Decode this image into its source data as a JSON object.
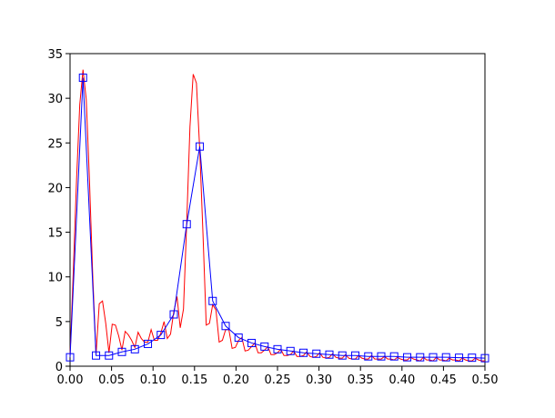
{
  "chart_data": {
    "type": "line",
    "series": [
      {
        "color": "#ff0000",
        "marker": "none",
        "x": [
          0,
          0.0039,
          0.0078,
          0.0117,
          0.0156,
          0.0195,
          0.0234,
          0.0273,
          0.0313,
          0.0352,
          0.0391,
          0.043,
          0.0469,
          0.0508,
          0.0547,
          0.0586,
          0.0625,
          0.0664,
          0.0703,
          0.0742,
          0.0781,
          0.082,
          0.0859,
          0.0898,
          0.0938,
          0.0977,
          0.1016,
          0.1055,
          0.1094,
          0.1133,
          0.1172,
          0.1211,
          0.125,
          0.1289,
          0.1328,
          0.1367,
          0.1406,
          0.1445,
          0.1484,
          0.1523,
          0.1563,
          0.1602,
          0.1641,
          0.168,
          0.1719,
          0.1758,
          0.1797,
          0.1836,
          0.1875,
          0.1914,
          0.1953,
          0.1992,
          0.2031,
          0.207,
          0.2109,
          0.2148,
          0.2188,
          0.2227,
          0.2266,
          0.2305,
          0.2344,
          0.2383,
          0.2422,
          0.2461,
          0.25,
          0.2539,
          0.2578,
          0.2617,
          0.2656,
          0.2695,
          0.2734,
          0.2773,
          0.2813,
          0.2852,
          0.2891,
          0.293,
          0.2969,
          0.3008,
          0.3047,
          0.3086,
          0.3125,
          0.3164,
          0.3203,
          0.3242,
          0.3281,
          0.332,
          0.3359,
          0.3398,
          0.3438,
          0.3477,
          0.3516,
          0.3555,
          0.3594,
          0.3633,
          0.3672,
          0.3711,
          0.375,
          0.3789,
          0.3828,
          0.3867,
          0.3906,
          0.3945,
          0.3984,
          0.4023,
          0.4063,
          0.4102,
          0.4141,
          0.418,
          0.4219,
          0.4258,
          0.4297,
          0.4336,
          0.4375,
          0.4414,
          0.4453,
          0.4492,
          0.4531,
          0.457,
          0.4609,
          0.4648,
          0.4688,
          0.4727,
          0.4766,
          0.4805,
          0.4844,
          0.4883,
          0.4922,
          0.4961,
          0.5
        ],
        "values": [
          1.1,
          10.6,
          20.8,
          29.3,
          33.2,
          29.9,
          20.8,
          10.2,
          1.3,
          7.0,
          7.3,
          4.8,
          1.5,
          4.7,
          4.6,
          3.4,
          1.8,
          3.9,
          3.5,
          2.9,
          2.1,
          3.8,
          3.1,
          2.7,
          2.7,
          4.1,
          2.9,
          2.9,
          3.7,
          5.0,
          3.1,
          3.6,
          6.1,
          7.8,
          4.3,
          6.4,
          16.1,
          26.8,
          32.7,
          31.7,
          24.2,
          14.8,
          4.6,
          4.8,
          6.9,
          6.3,
          2.7,
          2.9,
          4.1,
          4.1,
          2.0,
          2.1,
          2.9,
          3.2,
          1.7,
          1.8,
          2.2,
          2.6,
          1.5,
          1.5,
          1.8,
          2.2,
          1.3,
          1.3,
          1.5,
          1.9,
          1.2,
          1.2,
          1.3,
          1.7,
          1.1,
          1.1,
          1.2,
          1.6,
          1.1,
          1.0,
          1.1,
          1.5,
          1.0,
          0.9,
          1.0,
          1.4,
          1.0,
          0.9,
          0.9,
          1.3,
          0.9,
          0.8,
          0.8,
          1.2,
          0.9,
          0.8,
          0.8,
          1.2,
          0.8,
          0.8,
          0.8,
          1.1,
          0.8,
          0.8,
          0.7,
          1.0,
          0.8,
          0.7,
          0.7,
          1.0,
          0.8,
          0.7,
          0.6,
          1.0,
          0.7,
          0.7,
          0.6,
          1.0,
          0.7,
          0.7,
          0.6,
          0.9,
          0.7,
          0.7,
          0.6,
          0.9,
          0.7,
          0.6,
          0.6,
          0.9,
          0.7,
          0.6,
          0.6
        ]
      },
      {
        "color": "#0000ff",
        "marker": "square",
        "x": [
          0,
          0.0156,
          0.0313,
          0.0469,
          0.0625,
          0.0781,
          0.0938,
          0.1094,
          0.125,
          0.1406,
          0.1563,
          0.1719,
          0.1875,
          0.2031,
          0.2188,
          0.2344,
          0.25,
          0.2656,
          0.2813,
          0.2969,
          0.3125,
          0.3281,
          0.3438,
          0.3594,
          0.375,
          0.3906,
          0.4063,
          0.4219,
          0.4375,
          0.4531,
          0.4688,
          0.4844,
          0.5
        ],
        "values": [
          1.0,
          32.3,
          1.2,
          1.2,
          1.6,
          1.9,
          2.5,
          3.5,
          5.8,
          15.9,
          24.6,
          7.3,
          4.5,
          3.2,
          2.6,
          2.2,
          1.9,
          1.7,
          1.5,
          1.4,
          1.3,
          1.2,
          1.2,
          1.1,
          1.1,
          1.1,
          1.0,
          1.0,
          1.0,
          1.0,
          0.95,
          0.95,
          0.9
        ]
      }
    ],
    "xlim": [
      0,
      0.5
    ],
    "xticks": [
      {
        "value": 0,
        "label": "0.00"
      },
      {
        "value": 0.05,
        "label": "0.05"
      },
      {
        "value": 0.1,
        "label": "0.10"
      },
      {
        "value": 0.15,
        "label": "0.15"
      },
      {
        "value": 0.2,
        "label": "0.20"
      },
      {
        "value": 0.25,
        "label": "0.25"
      },
      {
        "value": 0.3,
        "label": "0.30"
      },
      {
        "value": 0.35,
        "label": "0.35"
      },
      {
        "value": 0.4,
        "label": "0.40"
      },
      {
        "value": 0.45,
        "label": "0.45"
      },
      {
        "value": 0.5,
        "label": "0.50"
      }
    ],
    "ylim": [
      0,
      35
    ],
    "yticks": [
      0,
      5,
      10,
      15,
      20,
      25,
      30,
      35
    ],
    "grid": false
  }
}
